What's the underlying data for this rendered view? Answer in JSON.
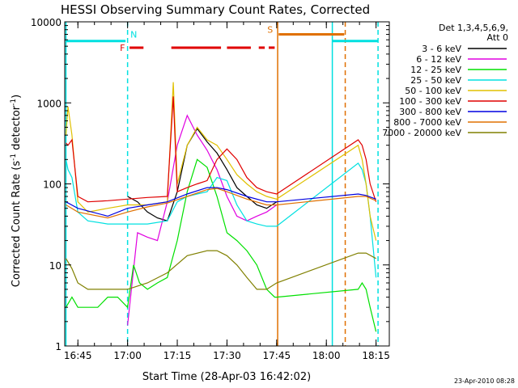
{
  "chart_data": {
    "type": "line",
    "title": "HESSI Observing Summary Count Rates, Corrected",
    "xlabel": "Start Time (28-Apr-03 16:42:02)",
    "ylabel_main": "Corrected Count Rate (s",
    "ylabel_sup1": "-1",
    "ylabel_mid": " detector",
    "ylabel_sup2": "-1",
    "ylabel_end": ")",
    "yscale": "log",
    "ylim": [
      1,
      10000
    ],
    "xlim": [
      16.6839,
      18.3167
    ],
    "x_ticks": [
      {
        "x": 16.75,
        "label": "16:45"
      },
      {
        "x": 17.0,
        "label": "17:00"
      },
      {
        "x": 17.25,
        "label": "17:15"
      },
      {
        "x": 17.5,
        "label": "17:30"
      },
      {
        "x": 17.75,
        "label": "17:45"
      },
      {
        "x": 18.0,
        "label": "18:00"
      },
      {
        "x": 18.25,
        "label": "18:15"
      }
    ],
    "y_ticks": [
      {
        "y": 1,
        "label": "1"
      },
      {
        "y": 10,
        "label": "10"
      },
      {
        "y": 100,
        "label": "100"
      },
      {
        "y": 1000,
        "label": "1000"
      },
      {
        "y": 10000,
        "label": "10000"
      }
    ],
    "legend": {
      "header1": "Det 1,3,4,5,6,9,",
      "header2": "Att 0",
      "placement": "right"
    },
    "series": [
      {
        "name": "3 - 6 keV",
        "color": "#000000",
        "x": [
          17.0,
          17.05,
          17.1,
          17.15,
          17.2,
          17.25,
          17.3,
          17.35,
          17.4,
          17.45,
          17.5,
          17.55,
          17.6,
          17.65,
          17.7,
          17.75
        ],
        "y": [
          70,
          60,
          45,
          38,
          35,
          80,
          300,
          480,
          330,
          240,
          150,
          90,
          70,
          55,
          50,
          60
        ]
      },
      {
        "name": "6 - 12 keV",
        "color": "#e000e0",
        "x": [
          17.0,
          17.05,
          17.1,
          17.15,
          17.2,
          17.25,
          17.3,
          17.35,
          17.4,
          17.45,
          17.5,
          17.55,
          17.6,
          17.65,
          17.7,
          17.75
        ],
        "y": [
          1.8,
          25,
          22,
          20,
          60,
          300,
          700,
          400,
          260,
          150,
          70,
          40,
          35,
          40,
          45,
          55
        ]
      },
      {
        "name": "12 - 25 keV",
        "color": "#00e000",
        "x": [
          16.69,
          16.72,
          16.75,
          16.8,
          16.85,
          16.9,
          16.95,
          17.0,
          17.03,
          17.06,
          17.1,
          17.15,
          17.2,
          17.25,
          17.3,
          17.35,
          17.4,
          17.45,
          17.5,
          17.55,
          17.6,
          17.65,
          17.7,
          17.74,
          17.75,
          18.16,
          18.18,
          18.2,
          18.22,
          18.25
        ],
        "y": [
          3,
          4,
          3,
          3,
          3,
          4,
          4,
          3,
          10,
          6,
          5,
          6,
          7,
          20,
          80,
          200,
          160,
          70,
          25,
          20,
          15,
          10,
          5,
          4,
          4,
          5,
          6,
          5,
          3,
          1.5
        ]
      },
      {
        "name": "25 - 50 keV",
        "color": "#00e0e0",
        "x": [
          16.69,
          16.7,
          16.72,
          16.75,
          16.8,
          16.9,
          17.0,
          17.1,
          17.2,
          17.25,
          17.3,
          17.35,
          17.4,
          17.45,
          17.5,
          17.55,
          17.6,
          17.65,
          17.7,
          17.75,
          18.16,
          18.18,
          18.2,
          18.22,
          18.25
        ],
        "y": [
          200,
          150,
          120,
          45,
          35,
          32,
          32,
          32,
          35,
          60,
          70,
          75,
          80,
          120,
          110,
          55,
          35,
          32,
          30,
          30,
          180,
          150,
          100,
          40,
          7
        ]
      },
      {
        "name": "50 - 100 keV",
        "color": "#e0c000",
        "x": [
          16.69,
          16.7,
          16.72,
          16.75,
          16.8,
          16.9,
          17.0,
          17.1,
          17.2,
          17.23,
          17.25,
          17.3,
          17.35,
          17.4,
          17.45,
          17.5,
          17.55,
          17.6,
          17.65,
          17.7,
          17.75,
          18.16,
          18.18,
          18.2,
          18.22,
          18.25
        ],
        "y": [
          400,
          900,
          400,
          60,
          45,
          50,
          55,
          55,
          60,
          1800,
          100,
          300,
          500,
          350,
          300,
          200,
          130,
          100,
          80,
          70,
          65,
          300,
          200,
          100,
          40,
          20
        ]
      },
      {
        "name": "100 - 300 keV",
        "color": "#e00000",
        "x": [
          16.69,
          16.7,
          16.72,
          16.75,
          16.8,
          16.9,
          17.0,
          17.1,
          17.2,
          17.23,
          17.25,
          17.3,
          17.35,
          17.4,
          17.45,
          17.5,
          17.55,
          17.6,
          17.65,
          17.7,
          17.75,
          18.16,
          18.18,
          18.2,
          18.22,
          18.25
        ],
        "y": [
          320,
          300,
          350,
          70,
          60,
          62,
          65,
          68,
          70,
          1200,
          80,
          90,
          100,
          110,
          200,
          270,
          200,
          120,
          90,
          80,
          75,
          350,
          300,
          200,
          100,
          60
        ]
      },
      {
        "name": "300 - 800 keV",
        "color": "#0000e0",
        "x": [
          16.69,
          16.75,
          16.9,
          17.0,
          17.1,
          17.2,
          17.3,
          17.4,
          17.45,
          17.5,
          17.6,
          17.7,
          17.75,
          18.16,
          18.2,
          18.25
        ],
        "y": [
          60,
          50,
          40,
          50,
          55,
          60,
          75,
          90,
          90,
          85,
          70,
          60,
          60,
          75,
          72,
          65
        ]
      },
      {
        "name": "800 - 7000 keV",
        "color": "#e07000",
        "x": [
          16.69,
          16.75,
          16.9,
          17.0,
          17.1,
          17.2,
          17.3,
          17.4,
          17.45,
          17.5,
          17.6,
          17.7,
          17.75,
          18.16,
          18.2,
          18.25
        ],
        "y": [
          55,
          45,
          38,
          45,
          52,
          58,
          70,
          85,
          88,
          80,
          65,
          55,
          55,
          70,
          70,
          62
        ]
      },
      {
        "name": "7000 - 20000 keV",
        "color": "#808000",
        "x": [
          16.69,
          16.72,
          16.75,
          16.8,
          16.9,
          17.0,
          17.1,
          17.2,
          17.3,
          17.4,
          17.45,
          17.5,
          17.55,
          17.6,
          17.65,
          17.7,
          17.75,
          18.16,
          18.2,
          18.25
        ],
        "y": [
          12,
          9,
          6,
          5,
          5,
          5,
          6,
          8,
          13,
          15,
          15,
          13,
          10,
          7,
          5,
          5,
          6,
          14,
          14,
          12
        ]
      }
    ],
    "flag_bars": [
      {
        "flag": "N",
        "color": "#00e0e0",
        "y": 5800,
        "segments": [
          [
            16.69,
            16.99
          ],
          [
            18.03,
            18.26
          ]
        ]
      },
      {
        "flag": "F",
        "color": "#e00000",
        "y": 4800,
        "segments": [
          [
            17.01,
            17.08
          ],
          [
            17.22,
            17.47
          ],
          [
            17.5,
            17.62
          ],
          [
            17.66,
            17.69
          ],
          [
            17.71,
            17.74
          ]
        ]
      },
      {
        "flag": "S",
        "color": "#e07000",
        "y": 7000,
        "segments": [
          [
            17.76,
            18.09
          ]
        ]
      }
    ],
    "vlines": [
      {
        "x": 16.69,
        "color": "#00e0e0",
        "style": "solid"
      },
      {
        "x": 17.0,
        "color": "#00e0e0",
        "style": "dashed"
      },
      {
        "x": 17.755,
        "color": "#e07000",
        "style": "solid"
      },
      {
        "x": 18.03,
        "color": "#00e0e0",
        "style": "solid"
      },
      {
        "x": 18.095,
        "color": "#e07000",
        "style": "dashed"
      },
      {
        "x": 18.26,
        "color": "#00e0e0",
        "style": "dashed"
      }
    ],
    "date_stamp": "23-Apr-2010 08:28"
  }
}
